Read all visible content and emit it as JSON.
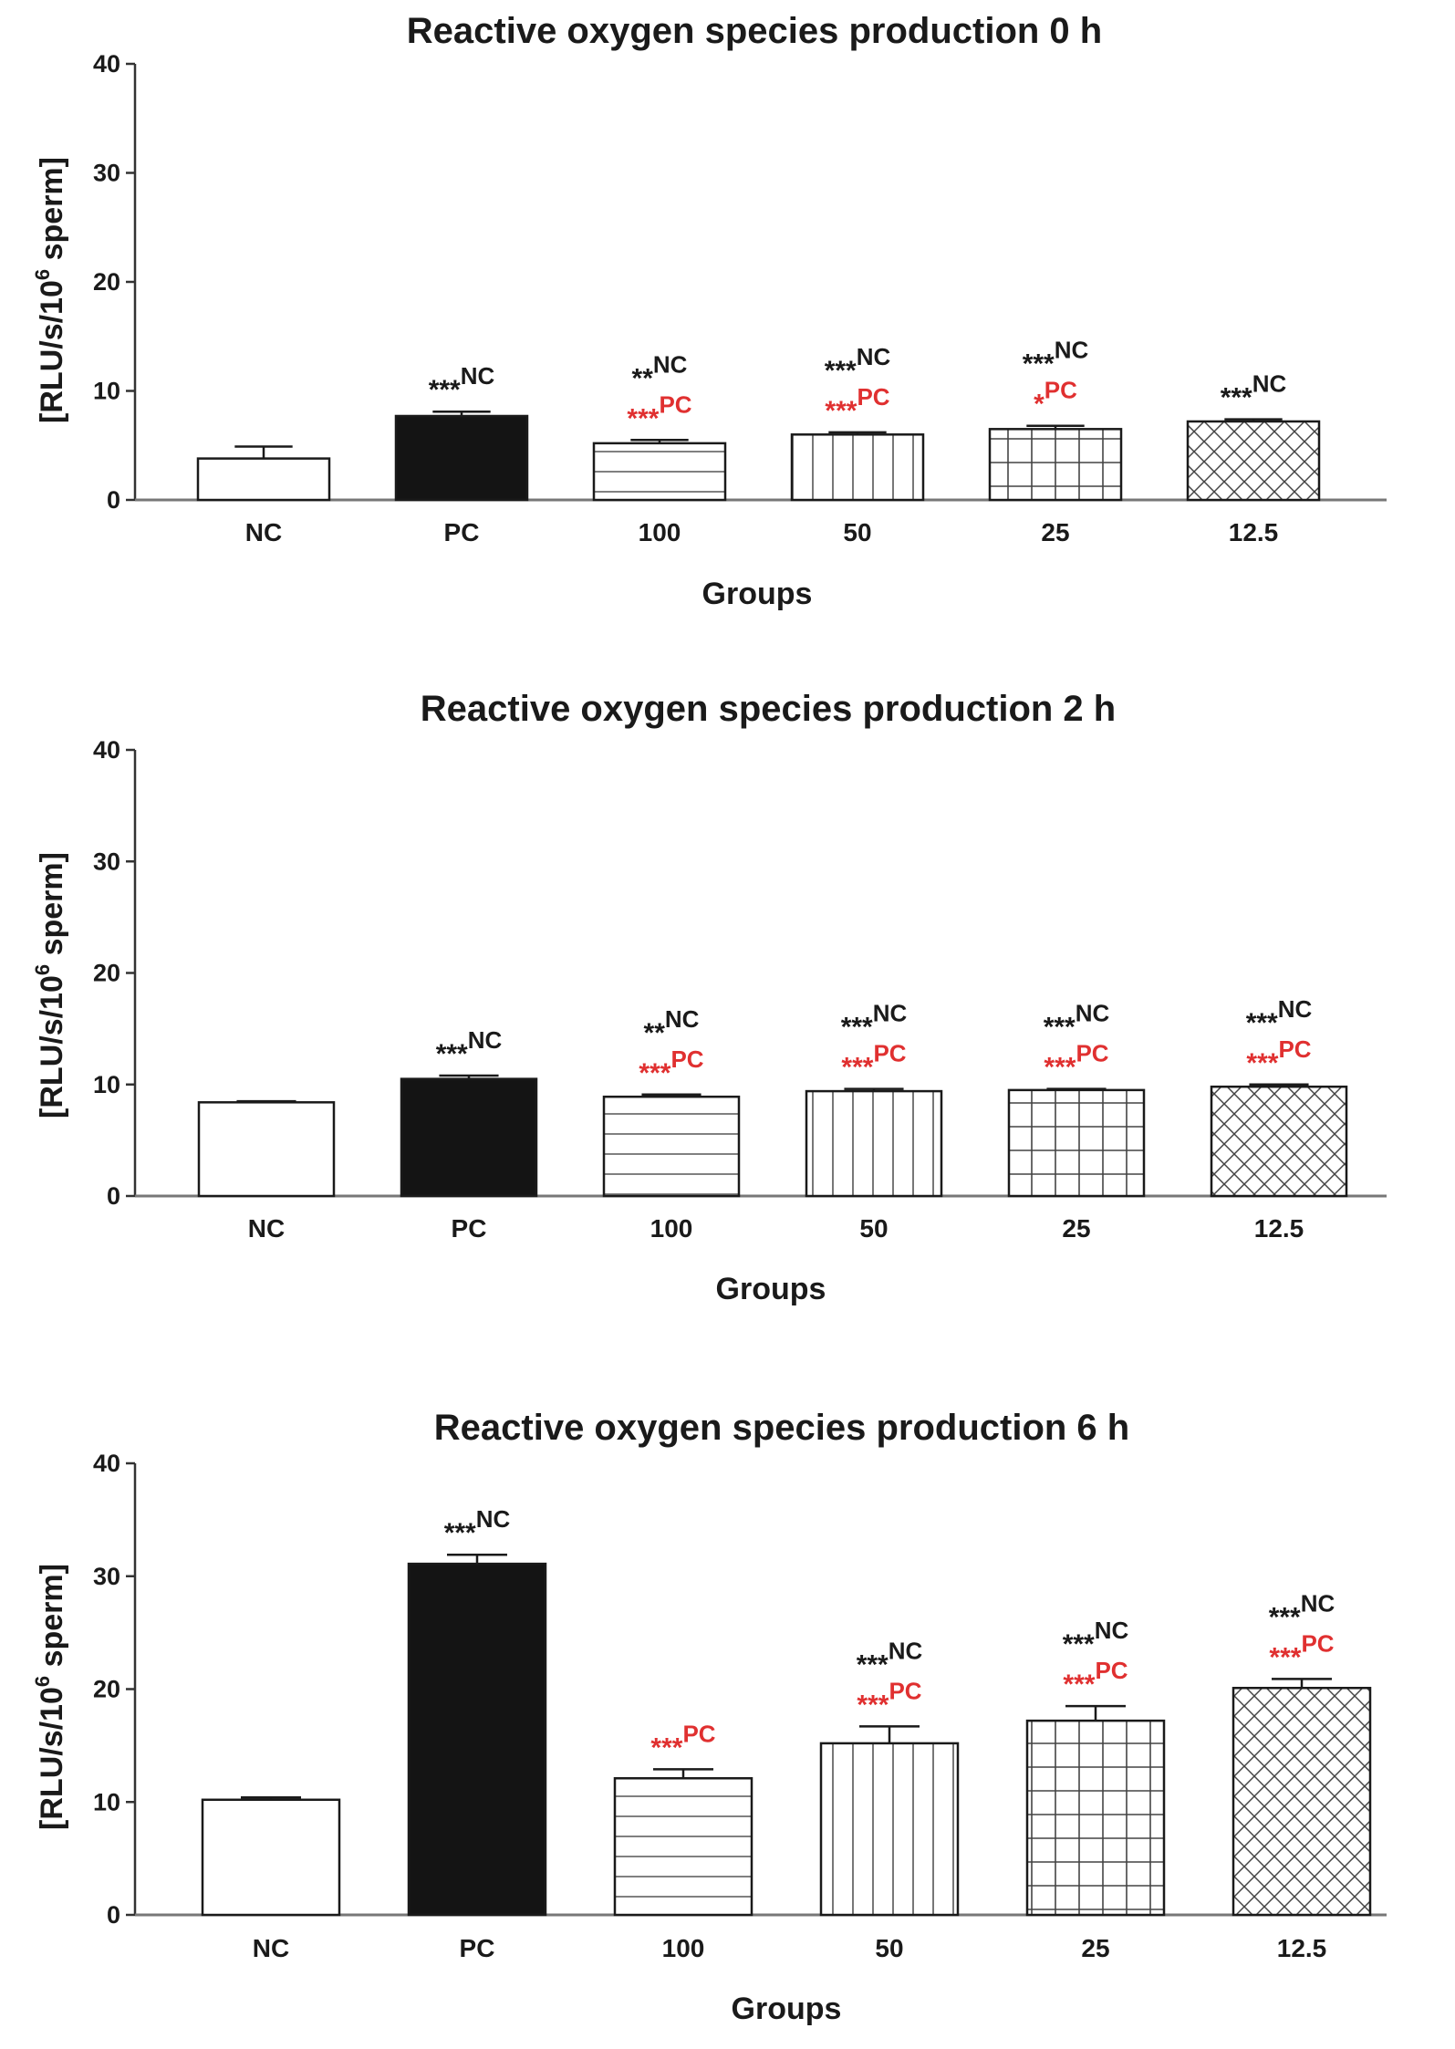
{
  "chart_data": [
    {
      "type": "bar",
      "title": "Reactive oxygen species production 0 h",
      "xlabel": "Groups",
      "ylabel": "[RLU/s/10",
      "ylabel_sup": "6",
      "ylabel_tail": " sperm]",
      "ylim": [
        0,
        40
      ],
      "yticks": [
        0,
        10,
        20,
        30,
        40
      ],
      "categories": [
        "NC",
        "PC",
        "100",
        "50",
        "25",
        "12.5"
      ],
      "values": [
        3.8,
        7.7,
        5.2,
        6.0,
        6.5,
        7.2
      ],
      "errors": [
        1.1,
        0.4,
        0.3,
        0.2,
        0.3,
        0.2
      ],
      "patterns": [
        "none",
        "solid",
        "horizontal",
        "vertical",
        "grid",
        "crosshatch"
      ],
      "annotations": [
        [],
        [
          {
            "stars": "***",
            "text": "NC",
            "color": "#1a1a1a"
          }
        ],
        [
          {
            "stars": "**",
            "text": "NC",
            "color": "#1a1a1a"
          },
          {
            "stars": "***",
            "text": "PC",
            "color": "#e03030"
          }
        ],
        [
          {
            "stars": "***",
            "text": "NC",
            "color": "#1a1a1a"
          },
          {
            "stars": "***",
            "text": "PC",
            "color": "#e03030"
          }
        ],
        [
          {
            "stars": "***",
            "text": "NC",
            "color": "#1a1a1a"
          },
          {
            "stars": "*",
            "text": "PC",
            "color": "#e03030"
          }
        ],
        [
          {
            "stars": "***",
            "text": "NC",
            "color": "#1a1a1a"
          }
        ]
      ]
    },
    {
      "type": "bar",
      "title": "Reactive oxygen species production 2 h",
      "xlabel": "Groups",
      "ylabel": "[RLU/s/10",
      "ylabel_sup": "6",
      "ylabel_tail": " sperm]",
      "ylim": [
        0,
        40
      ],
      "yticks": [
        0,
        10,
        20,
        30,
        40
      ],
      "categories": [
        "NC",
        "PC",
        "100",
        "50",
        "25",
        "12.5"
      ],
      "values": [
        8.4,
        10.5,
        8.9,
        9.4,
        9.5,
        9.8
      ],
      "errors": [
        0.1,
        0.3,
        0.2,
        0.2,
        0.1,
        0.2
      ],
      "patterns": [
        "none",
        "solid",
        "horizontal",
        "vertical",
        "grid",
        "crosshatch"
      ],
      "annotations": [
        [],
        [
          {
            "stars": "***",
            "text": "NC",
            "color": "#1a1a1a"
          }
        ],
        [
          {
            "stars": "**",
            "text": "NC",
            "color": "#1a1a1a"
          },
          {
            "stars": "***",
            "text": "PC",
            "color": "#e03030"
          }
        ],
        [
          {
            "stars": "***",
            "text": "NC",
            "color": "#1a1a1a"
          },
          {
            "stars": "***",
            "text": "PC",
            "color": "#e03030"
          }
        ],
        [
          {
            "stars": "***",
            "text": "NC",
            "color": "#1a1a1a"
          },
          {
            "stars": "***",
            "text": "PC",
            "color": "#e03030"
          }
        ],
        [
          {
            "stars": "***",
            "text": "NC",
            "color": "#1a1a1a"
          },
          {
            "stars": "***",
            "text": "PC",
            "color": "#e03030"
          }
        ]
      ]
    },
    {
      "type": "bar",
      "title": "Reactive oxygen species production 6 h",
      "xlabel": "Groups",
      "ylabel": "[RLU/s/10",
      "ylabel_sup": "6",
      "ylabel_tail": " sperm]",
      "ylim": [
        0,
        40
      ],
      "yticks": [
        0,
        10,
        20,
        30,
        40
      ],
      "categories": [
        "NC",
        "PC",
        "100",
        "50",
        "25",
        "12.5"
      ],
      "values": [
        10.2,
        31.1,
        12.1,
        15.2,
        17.2,
        20.1
      ],
      "errors": [
        0.2,
        0.8,
        0.8,
        1.5,
        1.3,
        0.8
      ],
      "patterns": [
        "none",
        "solid",
        "horizontal",
        "vertical",
        "grid",
        "crosshatch"
      ],
      "annotations": [
        [],
        [
          {
            "stars": "***",
            "text": "NC",
            "color": "#1a1a1a"
          }
        ],
        [
          {
            "stars": "***",
            "text": "PC",
            "color": "#e03030"
          }
        ],
        [
          {
            "stars": "***",
            "text": "NC",
            "color": "#1a1a1a"
          },
          {
            "stars": "***",
            "text": "PC",
            "color": "#e03030"
          }
        ],
        [
          {
            "stars": "***",
            "text": "NC",
            "color": "#1a1a1a"
          },
          {
            "stars": "***",
            "text": "PC",
            "color": "#e03030"
          }
        ],
        [
          {
            "stars": "***",
            "text": "NC",
            "color": "#1a1a1a"
          },
          {
            "stars": "***",
            "text": "PC",
            "color": "#e03030"
          }
        ]
      ]
    }
  ],
  "colors": {
    "ink": "#1a1a1a",
    "significance_pc": "#e03030",
    "solid_bar": "#141414",
    "axis": "#333333"
  }
}
